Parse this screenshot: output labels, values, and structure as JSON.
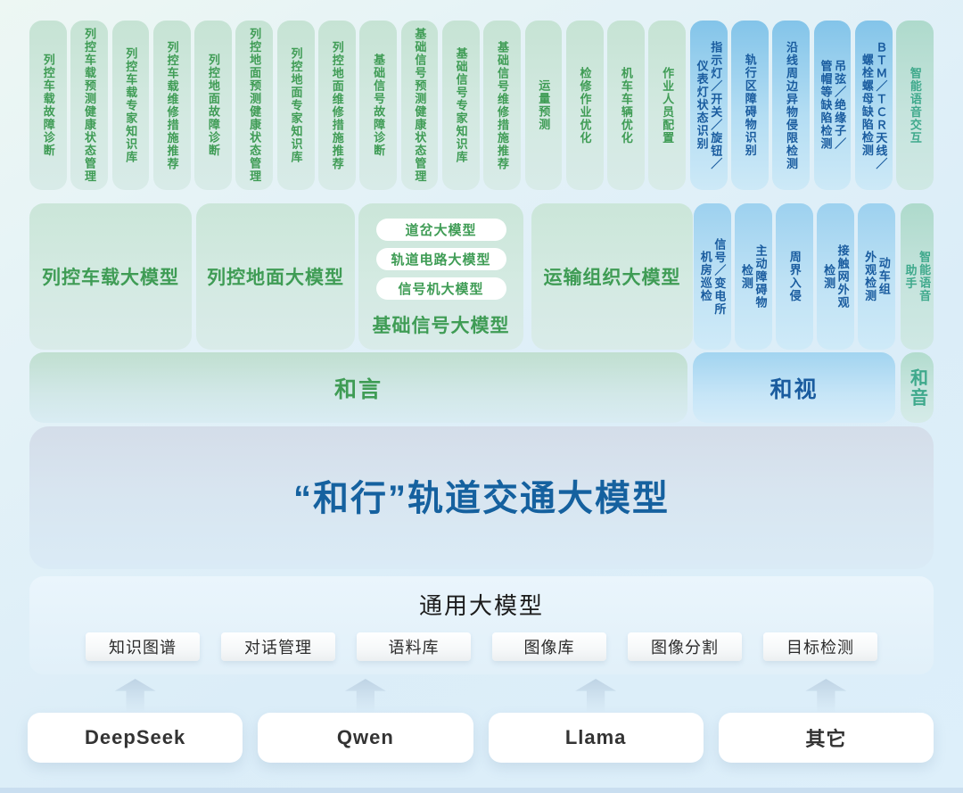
{
  "palette": {
    "green_text": "#3f9c55",
    "blue_text": "#1a5c9f",
    "teal_text": "#3fa98c",
    "title_blue": "#15619f",
    "dark_text": "#333333"
  },
  "top_pills": {
    "green": [
      "列控车载故障诊断",
      "列控车载预测健康状态管理",
      "列控车载专家知识库",
      "列控车载维修措施推荐",
      "列控地面故障诊断",
      "列控地面预测健康状态管理",
      "列控地面专家知识库",
      "列控地面维修措施推荐",
      "基础信号故障诊断",
      "基础信号预测健康状态管理",
      "基础信号专家知识库",
      "基础信号维修措施推荐",
      "运量预测",
      "检修作业优化",
      "机车车辆优化",
      "作业人员配置"
    ],
    "blue": [
      "指示灯／开关／旋钮／\n仪表灯状态识别",
      "轨行区障碍物识别",
      "沿线周边异物侵限检测",
      "吊弦／绝缘子／\n管帽等缺陷检测",
      "ＢＴＭ／ＴＣＲ天线／\n螺栓螺母缺陷检测"
    ],
    "teal": "智能语音交互"
  },
  "model_row": {
    "box1": "列控车载大模型",
    "box2": "列控地面大模型",
    "box3_title": "基础信号大模型",
    "box3_pills": [
      "道岔大模型",
      "轨道电路大模型",
      "信号机大模型"
    ],
    "box4": "运输组织大模型",
    "blue_pills": [
      "信号／变电所\n机房巡检",
      "主动障碍物\n检测",
      "周界入侵",
      "接触网外观\n检测",
      "动车组\n外观检测"
    ],
    "teal_pill": "智能语音\n助手"
  },
  "bars": {
    "heyan": "和言",
    "heshi": "和视",
    "heyin": "和音"
  },
  "main_title": "“和行”轨道交通大模型",
  "general": {
    "title": "通用大模型",
    "pills": [
      "知识图谱",
      "对话管理",
      "语料库",
      "图像库",
      "图像分割",
      "目标检测"
    ]
  },
  "foundation": {
    "items": [
      "DeepSeek",
      "Qwen",
      "Llama",
      "其它"
    ]
  }
}
